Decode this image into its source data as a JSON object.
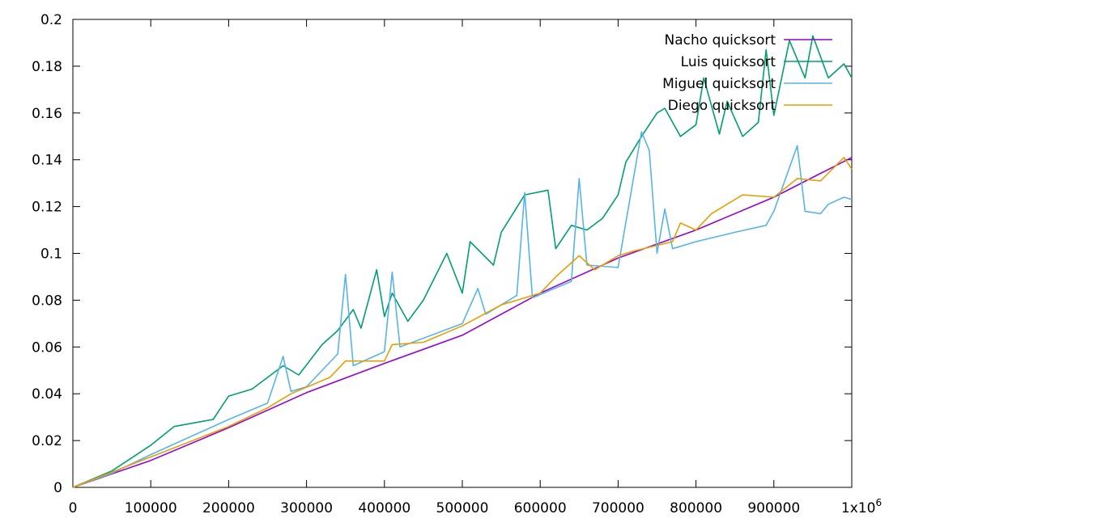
{
  "chart_data": {
    "type": "line",
    "title": "",
    "xlabel": "",
    "ylabel": "",
    "xlim": [
      0,
      1000000
    ],
    "ylim": [
      0,
      0.2
    ],
    "grid": false,
    "legend_position": "top-right",
    "x_ticks": [
      0,
      100000,
      200000,
      300000,
      400000,
      500000,
      600000,
      700000,
      800000,
      900000,
      1000000
    ],
    "x_tick_labels": [
      "0",
      "100000",
      "200000",
      "300000",
      "400000",
      "500000",
      "600000",
      "700000",
      "800000",
      "900000",
      "1x10"
    ],
    "x_last_tick_exponent": "6",
    "y_ticks": [
      0,
      0.02,
      0.04,
      0.06,
      0.08,
      0.1,
      0.12,
      0.14,
      0.16,
      0.18,
      0.2
    ],
    "y_tick_labels": [
      "0",
      "0.02",
      "0.04",
      "0.06",
      "0.08",
      "0.1",
      "0.12",
      "0.14",
      "0.16",
      "0.18",
      "0.2"
    ],
    "series": [
      {
        "name": "Nacho quicksort",
        "color": "#9400d3",
        "points": [
          [
            0,
            0.0
          ],
          [
            100000,
            0.0115
          ],
          [
            200000,
            0.0255
          ],
          [
            300000,
            0.0405
          ],
          [
            400000,
            0.053
          ],
          [
            500000,
            0.065
          ],
          [
            600000,
            0.083
          ],
          [
            700000,
            0.098
          ],
          [
            800000,
            0.11
          ],
          [
            900000,
            0.124
          ],
          [
            1000000,
            0.141
          ]
        ]
      },
      {
        "name": "Luis quicksort",
        "color": "#009e73",
        "points": [
          [
            0,
            0.0
          ],
          [
            50000,
            0.007
          ],
          [
            100000,
            0.018
          ],
          [
            130000,
            0.026
          ],
          [
            180000,
            0.029
          ],
          [
            200000,
            0.039
          ],
          [
            230000,
            0.042
          ],
          [
            270000,
            0.052
          ],
          [
            290000,
            0.048
          ],
          [
            320000,
            0.061
          ],
          [
            340000,
            0.067
          ],
          [
            360000,
            0.076
          ],
          [
            370000,
            0.068
          ],
          [
            390000,
            0.093
          ],
          [
            400000,
            0.073
          ],
          [
            410000,
            0.083
          ],
          [
            430000,
            0.071
          ],
          [
            450000,
            0.08
          ],
          [
            480000,
            0.1
          ],
          [
            500000,
            0.083
          ],
          [
            510000,
            0.105
          ],
          [
            540000,
            0.095
          ],
          [
            550000,
            0.109
          ],
          [
            580000,
            0.125
          ],
          [
            610000,
            0.127
          ],
          [
            620000,
            0.102
          ],
          [
            640000,
            0.112
          ],
          [
            660000,
            0.11
          ],
          [
            680000,
            0.115
          ],
          [
            700000,
            0.125
          ],
          [
            710000,
            0.139
          ],
          [
            730000,
            0.15
          ],
          [
            750000,
            0.16
          ],
          [
            760000,
            0.162
          ],
          [
            780000,
            0.15
          ],
          [
            800000,
            0.155
          ],
          [
            810000,
            0.175
          ],
          [
            830000,
            0.151
          ],
          [
            840000,
            0.165
          ],
          [
            860000,
            0.15
          ],
          [
            880000,
            0.156
          ],
          [
            890000,
            0.187
          ],
          [
            900000,
            0.159
          ],
          [
            920000,
            0.191
          ],
          [
            940000,
            0.175
          ],
          [
            950000,
            0.193
          ],
          [
            970000,
            0.175
          ],
          [
            990000,
            0.181
          ],
          [
            1000000,
            0.175
          ]
        ]
      },
      {
        "name": "Miguel quicksort",
        "color": "#56b4e9",
        "points": [
          [
            0,
            0.0
          ],
          [
            50000,
            0.006
          ],
          [
            100000,
            0.014
          ],
          [
            200000,
            0.029
          ],
          [
            250000,
            0.036
          ],
          [
            270000,
            0.056
          ],
          [
            280000,
            0.041
          ],
          [
            300000,
            0.043
          ],
          [
            340000,
            0.057
          ],
          [
            350000,
            0.091
          ],
          [
            360000,
            0.052
          ],
          [
            400000,
            0.058
          ],
          [
            410000,
            0.092
          ],
          [
            420000,
            0.06
          ],
          [
            500000,
            0.07
          ],
          [
            520000,
            0.085
          ],
          [
            530000,
            0.074
          ],
          [
            570000,
            0.082
          ],
          [
            580000,
            0.126
          ],
          [
            590000,
            0.081
          ],
          [
            640000,
            0.088
          ],
          [
            650000,
            0.132
          ],
          [
            660000,
            0.095
          ],
          [
            700000,
            0.094
          ],
          [
            730000,
            0.152
          ],
          [
            740000,
            0.144
          ],
          [
            750000,
            0.1
          ],
          [
            760000,
            0.119
          ],
          [
            770000,
            0.102
          ],
          [
            800000,
            0.105
          ],
          [
            850000,
            0.109
          ],
          [
            890000,
            0.112
          ],
          [
            900000,
            0.118
          ],
          [
            930000,
            0.146
          ],
          [
            940000,
            0.118
          ],
          [
            960000,
            0.117
          ],
          [
            970000,
            0.121
          ],
          [
            990000,
            0.124
          ],
          [
            1000000,
            0.123
          ]
        ]
      },
      {
        "name": "Diego quicksort",
        "color": "#e69f00",
        "points": [
          [
            0,
            0.0
          ],
          [
            100000,
            0.013
          ],
          [
            200000,
            0.026
          ],
          [
            250000,
            0.034
          ],
          [
            280000,
            0.04
          ],
          [
            330000,
            0.047
          ],
          [
            350000,
            0.054
          ],
          [
            400000,
            0.054
          ],
          [
            410000,
            0.061
          ],
          [
            450000,
            0.062
          ],
          [
            500000,
            0.069
          ],
          [
            550000,
            0.078
          ],
          [
            580000,
            0.081
          ],
          [
            600000,
            0.083
          ],
          [
            620000,
            0.09
          ],
          [
            650000,
            0.099
          ],
          [
            670000,
            0.093
          ],
          [
            700000,
            0.099
          ],
          [
            720000,
            0.101
          ],
          [
            770000,
            0.105
          ],
          [
            780000,
            0.113
          ],
          [
            800000,
            0.11
          ],
          [
            820000,
            0.117
          ],
          [
            860000,
            0.125
          ],
          [
            900000,
            0.124
          ],
          [
            930000,
            0.132
          ],
          [
            960000,
            0.131
          ],
          [
            990000,
            0.141
          ],
          [
            1000000,
            0.136
          ]
        ]
      }
    ]
  }
}
